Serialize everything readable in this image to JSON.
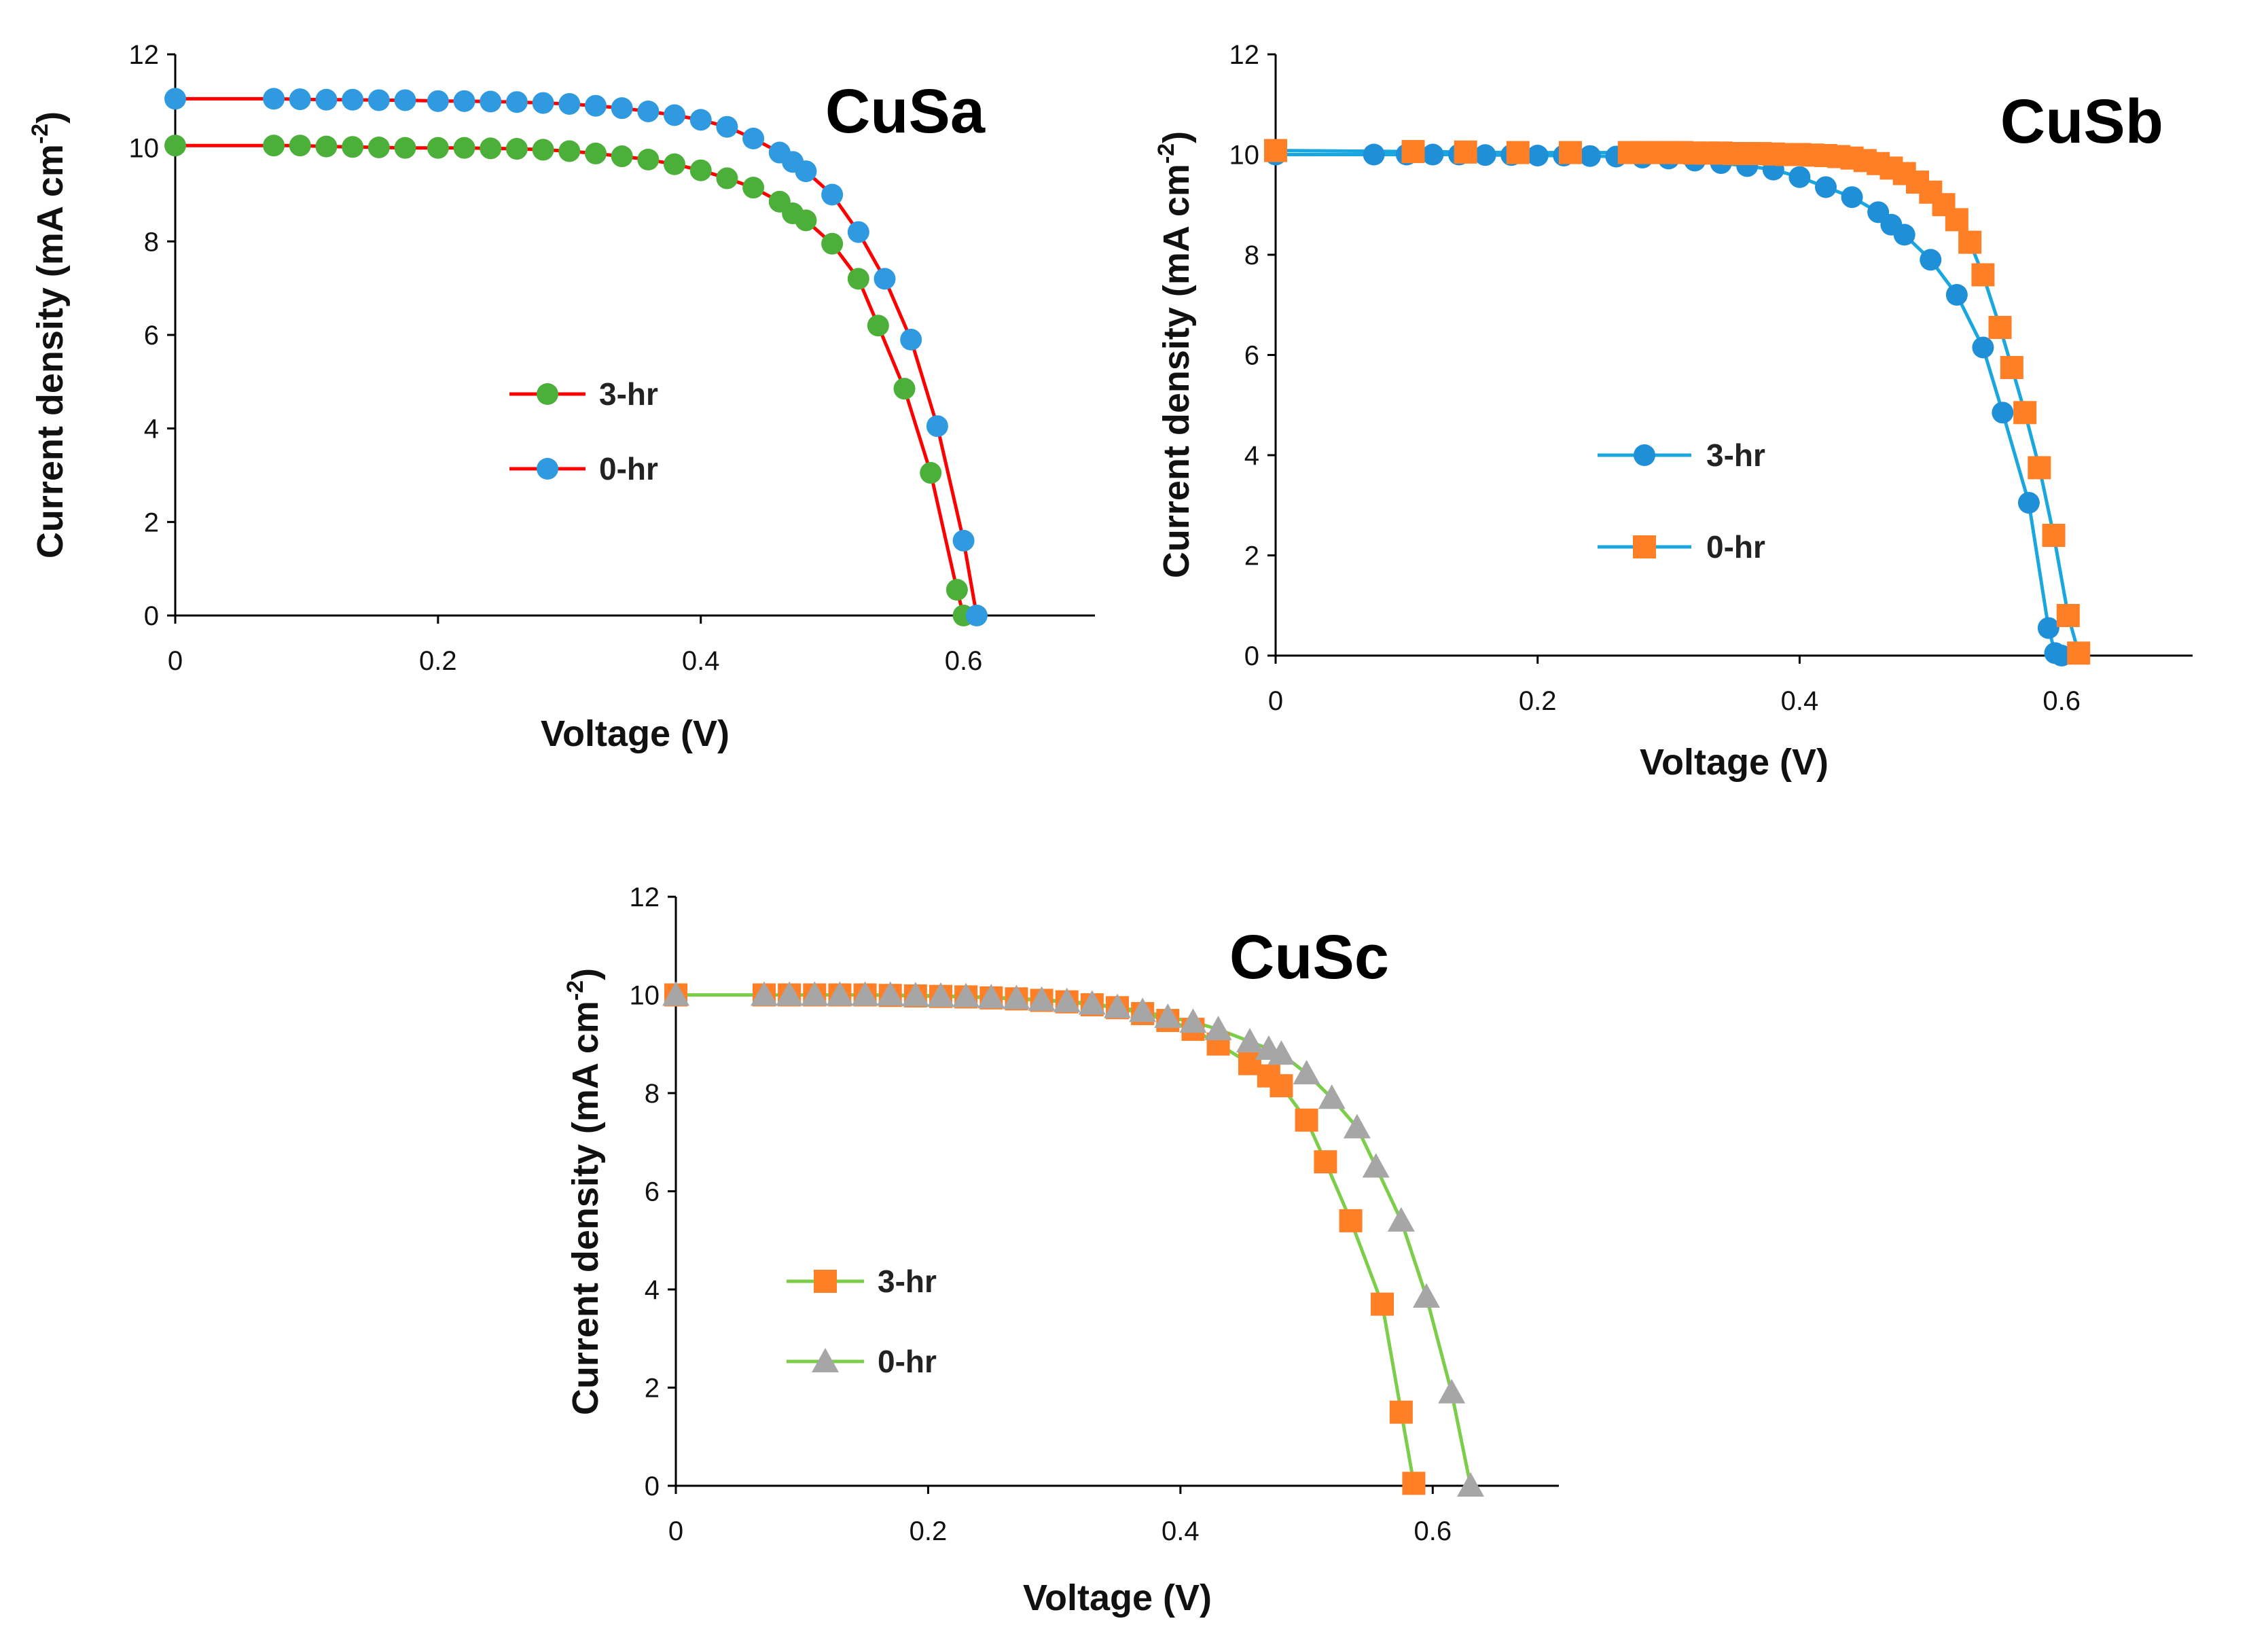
{
  "chart_data": [
    {
      "type": "line",
      "title": "CuSa",
      "xlabel": "Voltage (V)",
      "ylabel": "Current density (mA cm",
      "ylabel_sup": "-2",
      "ylabel_end": ")",
      "xlim": [
        0,
        0.7
      ],
      "ylim": [
        0,
        12
      ],
      "xticks": [
        0,
        0.2,
        0.4,
        0.6
      ],
      "xtick_labels": [
        "0",
        "0.2",
        "0.4",
        "0.6"
      ],
      "yticks": [
        0,
        2,
        4,
        6,
        8,
        10,
        12
      ],
      "ytick_labels": [
        "0",
        "2",
        "4",
        "6",
        "8",
        "10",
        "12"
      ],
      "legend_position": "center-left",
      "series": [
        {
          "name": "3-hr",
          "line_color": "#ff0000",
          "marker": "circle",
          "marker_color": "#4caf3a",
          "x": [
            0,
            0.075,
            0.095,
            0.115,
            0.135,
            0.155,
            0.175,
            0.2,
            0.22,
            0.24,
            0.26,
            0.28,
            0.3,
            0.32,
            0.34,
            0.36,
            0.38,
            0.4,
            0.42,
            0.44,
            0.46,
            0.47,
            0.48,
            0.5,
            0.52,
            0.535,
            0.555,
            0.575,
            0.595,
            0.6
          ],
          "y": [
            10.05,
            10.05,
            10.05,
            10.03,
            10.02,
            10.01,
            10.0,
            10.0,
            10.0,
            9.99,
            9.98,
            9.96,
            9.93,
            9.88,
            9.82,
            9.75,
            9.65,
            9.52,
            9.35,
            9.15,
            8.85,
            8.6,
            8.45,
            7.95,
            7.2,
            6.2,
            4.85,
            3.05,
            0.55,
            0.0
          ]
        },
        {
          "name": "0-hr",
          "line_color": "#ff0000",
          "marker": "circle",
          "marker_color": "#2f9ae0",
          "x": [
            0,
            0.075,
            0.095,
            0.115,
            0.135,
            0.155,
            0.175,
            0.2,
            0.22,
            0.24,
            0.26,
            0.28,
            0.3,
            0.32,
            0.34,
            0.36,
            0.38,
            0.4,
            0.42,
            0.44,
            0.46,
            0.47,
            0.48,
            0.5,
            0.52,
            0.54,
            0.56,
            0.58,
            0.6,
            0.61
          ],
          "y": [
            11.05,
            11.05,
            11.04,
            11.03,
            11.03,
            11.02,
            11.02,
            11.0,
            11.0,
            10.99,
            10.98,
            10.96,
            10.94,
            10.9,
            10.85,
            10.78,
            10.7,
            10.6,
            10.45,
            10.2,
            9.9,
            9.7,
            9.5,
            9.0,
            8.2,
            7.2,
            5.9,
            4.05,
            1.6,
            0.0
          ]
        }
      ]
    },
    {
      "type": "line",
      "title": "CuSb",
      "xlabel": "Voltage (V)",
      "ylabel": "Current density (mA cm",
      "ylabel_sup": "-2",
      "ylabel_end": ")",
      "xlim": [
        0,
        0.7
      ],
      "ylim": [
        0,
        12
      ],
      "xticks": [
        0,
        0.2,
        0.4,
        0.6
      ],
      "xtick_labels": [
        "0",
        "0.2",
        "0.4",
        "0.6"
      ],
      "yticks": [
        0,
        2,
        4,
        6,
        8,
        10,
        12
      ],
      "ytick_labels": [
        "0",
        "2",
        "4",
        "6",
        "8",
        "10",
        "12"
      ],
      "legend_position": "center-left",
      "series": [
        {
          "name": "3-hr",
          "line_color": "#1aa7e0",
          "marker": "circle",
          "marker_color": "#1f8fd8",
          "x": [
            0,
            0.075,
            0.1,
            0.12,
            0.14,
            0.16,
            0.18,
            0.2,
            0.22,
            0.24,
            0.26,
            0.28,
            0.3,
            0.32,
            0.34,
            0.36,
            0.38,
            0.4,
            0.42,
            0.44,
            0.46,
            0.47,
            0.48,
            0.5,
            0.52,
            0.54,
            0.555,
            0.575,
            0.59,
            0.595,
            0.6
          ],
          "y": [
            10.0,
            10.0,
            10.0,
            10.0,
            10.0,
            9.99,
            9.99,
            9.98,
            9.98,
            9.97,
            9.96,
            9.94,
            9.92,
            9.88,
            9.83,
            9.77,
            9.7,
            9.55,
            9.35,
            9.15,
            8.85,
            8.6,
            8.4,
            7.9,
            7.2,
            6.15,
            4.85,
            3.05,
            0.55,
            0.05,
            0.0
          ]
        },
        {
          "name": "0-hr",
          "line_color": "#1aa7e0",
          "marker": "square",
          "marker_color": "#ff7f27",
          "x": [
            0,
            0.105,
            0.145,
            0.185,
            0.225,
            0.27,
            0.28,
            0.29,
            0.3,
            0.31,
            0.32,
            0.33,
            0.34,
            0.35,
            0.36,
            0.37,
            0.38,
            0.39,
            0.4,
            0.41,
            0.42,
            0.43,
            0.44,
            0.45,
            0.46,
            0.47,
            0.48,
            0.49,
            0.5,
            0.51,
            0.52,
            0.53,
            0.54,
            0.553,
            0.562,
            0.572,
            0.583,
            0.594,
            0.605,
            0.613
          ],
          "y": [
            10.08,
            10.06,
            10.05,
            10.04,
            10.04,
            10.04,
            10.04,
            10.04,
            10.04,
            10.04,
            10.03,
            10.03,
            10.03,
            10.02,
            10.02,
            10.02,
            10.01,
            10.0,
            10.0,
            9.99,
            9.98,
            9.96,
            9.93,
            9.88,
            9.82,
            9.73,
            9.62,
            9.45,
            9.25,
            9.0,
            8.7,
            8.25,
            7.6,
            6.55,
            5.75,
            4.85,
            3.75,
            2.4,
            0.8,
            0.05
          ]
        }
      ]
    },
    {
      "type": "line",
      "title": "CuSc",
      "xlabel": "Voltage (V)",
      "ylabel": "Current density (mA cm",
      "ylabel_sup": "-2",
      "ylabel_end": ")",
      "xlim": [
        0,
        0.7
      ],
      "ylim": [
        0,
        12
      ],
      "xticks": [
        0,
        0.2,
        0.4,
        0.6
      ],
      "xtick_labels": [
        "0",
        "0.2",
        "0.4",
        "0.6"
      ],
      "yticks": [
        0,
        2,
        4,
        6,
        8,
        10,
        12
      ],
      "ytick_labels": [
        "0",
        "2",
        "4",
        "6",
        "8",
        "10",
        "12"
      ],
      "legend_position": "center-left",
      "series": [
        {
          "name": "3-hr",
          "line_color": "#7ccd4a",
          "marker": "square",
          "marker_color": "#ff7f27",
          "x": [
            0,
            0.07,
            0.09,
            0.11,
            0.13,
            0.15,
            0.17,
            0.19,
            0.21,
            0.23,
            0.25,
            0.27,
            0.29,
            0.31,
            0.33,
            0.35,
            0.37,
            0.39,
            0.41,
            0.43,
            0.455,
            0.47,
            0.48,
            0.5,
            0.515,
            0.535,
            0.56,
            0.575,
            0.585
          ],
          "y": [
            10.0,
            10.0,
            10.0,
            10.0,
            10.0,
            10.0,
            9.99,
            9.98,
            9.97,
            9.96,
            9.94,
            9.92,
            9.89,
            9.86,
            9.8,
            9.74,
            9.62,
            9.48,
            9.3,
            9.0,
            8.6,
            8.35,
            8.15,
            7.45,
            6.6,
            5.4,
            3.7,
            1.5,
            0.05
          ]
        },
        {
          "name": "0-hr",
          "line_color": "#7ccd4a",
          "marker": "triangle",
          "marker_color": "#a6a6a6",
          "x": [
            0,
            0.07,
            0.09,
            0.11,
            0.13,
            0.15,
            0.17,
            0.19,
            0.21,
            0.23,
            0.25,
            0.27,
            0.29,
            0.31,
            0.33,
            0.35,
            0.37,
            0.39,
            0.41,
            0.43,
            0.455,
            0.47,
            0.48,
            0.5,
            0.52,
            0.54,
            0.555,
            0.575,
            0.595,
            0.615,
            0.63
          ],
          "y": [
            10.0,
            10.0,
            10.0,
            10.0,
            10.0,
            10.0,
            10.0,
            9.99,
            9.98,
            9.97,
            9.95,
            9.93,
            9.9,
            9.87,
            9.82,
            9.75,
            9.67,
            9.55,
            9.45,
            9.3,
            9.05,
            8.9,
            8.8,
            8.4,
            7.9,
            7.3,
            6.5,
            5.4,
            3.85,
            1.9,
            0.0
          ]
        }
      ]
    }
  ]
}
